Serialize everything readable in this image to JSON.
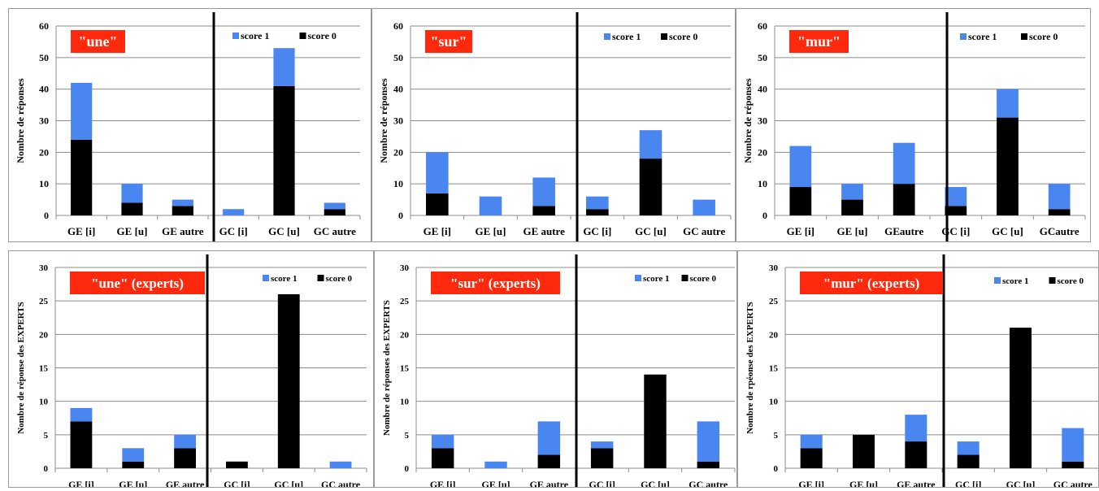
{
  "colors": {
    "score_1": "#4a86f0",
    "score_0": "#000000",
    "title_bg": "#ff2a0d",
    "title_text": "#ffffff",
    "gridline": "#8c8c8c",
    "separator": "#000000"
  },
  "chart_data": [
    {
      "type": "bar",
      "stacked": true,
      "title": "\"une\"",
      "ylabel": "Nombre de réponses",
      "ylim": [
        0,
        60
      ],
      "yticks": [
        0,
        10,
        20,
        30,
        40,
        50,
        60
      ],
      "categories": [
        "GE [i]",
        "GE [u]",
        "GE autre",
        "GC [i]",
        "GC [u]",
        "GC autre"
      ],
      "series": [
        {
          "name": "score 0",
          "color": "#000000",
          "values": [
            24,
            4,
            3,
            0,
            41,
            2
          ]
        },
        {
          "name": "score 1",
          "color": "#4a86f0",
          "values": [
            18,
            6,
            2,
            2,
            12,
            2
          ]
        }
      ],
      "legend": [
        {
          "label": "score 1",
          "color": "#4a86f0"
        },
        {
          "label": "score 0",
          "color": "#000000"
        }
      ],
      "legend_position": "top-right",
      "separator_after_category": 3,
      "grid": true
    },
    {
      "type": "bar",
      "stacked": true,
      "title": "\"sur\"",
      "ylabel": "Nombre de réponses",
      "ylim": [
        0,
        60
      ],
      "yticks": [
        0,
        10,
        20,
        30,
        40,
        50,
        60
      ],
      "categories": [
        "GE [i]",
        "GE [u]",
        "GE autre",
        "GC [i]",
        "GC [u]",
        "GC autre"
      ],
      "series": [
        {
          "name": "score 0",
          "color": "#000000",
          "values": [
            7,
            0,
            3,
            2,
            18,
            0
          ]
        },
        {
          "name": "score 1",
          "color": "#4a86f0",
          "values": [
            13,
            6,
            9,
            4,
            9,
            5
          ]
        }
      ],
      "legend": [
        {
          "label": "score 1",
          "color": "#4a86f0"
        },
        {
          "label": "score 0",
          "color": "#000000"
        }
      ],
      "legend_position": "top-right",
      "separator_after_category": 3,
      "grid": true
    },
    {
      "type": "bar",
      "stacked": true,
      "title": "\"mur\"",
      "ylabel": "Nombre de réponses",
      "ylim": [
        0,
        60
      ],
      "yticks": [
        0,
        10,
        20,
        30,
        40,
        50,
        60
      ],
      "categories": [
        "GE [i]",
        "GE [u]",
        "GEautre",
        "GC [i]",
        "GC [u]",
        "GCautre"
      ],
      "series": [
        {
          "name": "score 0",
          "color": "#000000",
          "values": [
            9,
            5,
            10,
            3,
            31,
            2
          ]
        },
        {
          "name": "score 1",
          "color": "#4a86f0",
          "values": [
            13,
            5,
            13,
            6,
            9,
            8
          ]
        }
      ],
      "legend": [
        {
          "label": "score 1",
          "color": "#4a86f0"
        },
        {
          "label": "score 0",
          "color": "#000000"
        }
      ],
      "legend_position": "top-right",
      "separator_after_category": 3,
      "grid": true
    },
    {
      "type": "bar",
      "stacked": true,
      "title": "\"une\" (experts)",
      "ylabel": "Nombre de réponse des EXPERTS",
      "ylim": [
        0,
        30
      ],
      "yticks": [
        0,
        5,
        10,
        15,
        20,
        25,
        30
      ],
      "categories": [
        "GE [i]",
        "GE [u]",
        "GE autre",
        "GC [i]",
        "GC [u]",
        "GC autre"
      ],
      "series": [
        {
          "name": "score 0",
          "color": "#000000",
          "values": [
            7,
            1,
            3,
            1,
            26,
            0
          ]
        },
        {
          "name": "score 1",
          "color": "#4a86f0",
          "values": [
            2,
            2,
            2,
            0,
            0,
            1
          ]
        }
      ],
      "legend": [
        {
          "label": "score 1",
          "color": "#4a86f0"
        },
        {
          "label": "score 0",
          "color": "#000000"
        }
      ],
      "legend_position": "top-right",
      "separator_after_category": 3,
      "grid": true
    },
    {
      "type": "bar",
      "stacked": true,
      "title": "\"sur\" (experts)",
      "ylabel": "Nombre de réponses des EXPERTS",
      "ylim": [
        0,
        30
      ],
      "yticks": [
        0,
        5,
        10,
        15,
        20,
        25,
        30
      ],
      "categories": [
        "GE [i]",
        "GE [u]",
        "GE autre",
        "GC [i]",
        "GC [u]",
        "GC autre"
      ],
      "series": [
        {
          "name": "score 0",
          "color": "#000000",
          "values": [
            3,
            0,
            2,
            3,
            14,
            1
          ]
        },
        {
          "name": "score 1",
          "color": "#4a86f0",
          "values": [
            2,
            1,
            5,
            1,
            0,
            6
          ]
        }
      ],
      "legend": [
        {
          "label": "score 1",
          "color": "#4a86f0"
        },
        {
          "label": "score 0",
          "color": "#000000"
        }
      ],
      "legend_position": "top-right",
      "separator_after_category": 3,
      "grid": true
    },
    {
      "type": "bar",
      "stacked": true,
      "title": "\"mur\" (experts)",
      "ylabel": "Nombre de rpéonse des EXPERTS",
      "ylim": [
        0,
        30
      ],
      "yticks": [
        0,
        5,
        10,
        15,
        20,
        25,
        30
      ],
      "categories": [
        "GE [i]",
        "GE [u]",
        "GE autre",
        "GC [i]",
        "GC [u]",
        "GC autre"
      ],
      "series": [
        {
          "name": "score 0",
          "color": "#000000",
          "values": [
            3,
            5,
            4,
            2,
            21,
            1
          ]
        },
        {
          "name": "score 1",
          "color": "#4a86f0",
          "values": [
            2,
            0,
            4,
            2,
            0,
            5
          ]
        }
      ],
      "legend": [
        {
          "label": "score 1",
          "color": "#4a86f0"
        },
        {
          "label": "score 0",
          "color": "#000000"
        }
      ],
      "legend_position": "top-right",
      "separator_after_category": 3,
      "grid": true
    }
  ]
}
